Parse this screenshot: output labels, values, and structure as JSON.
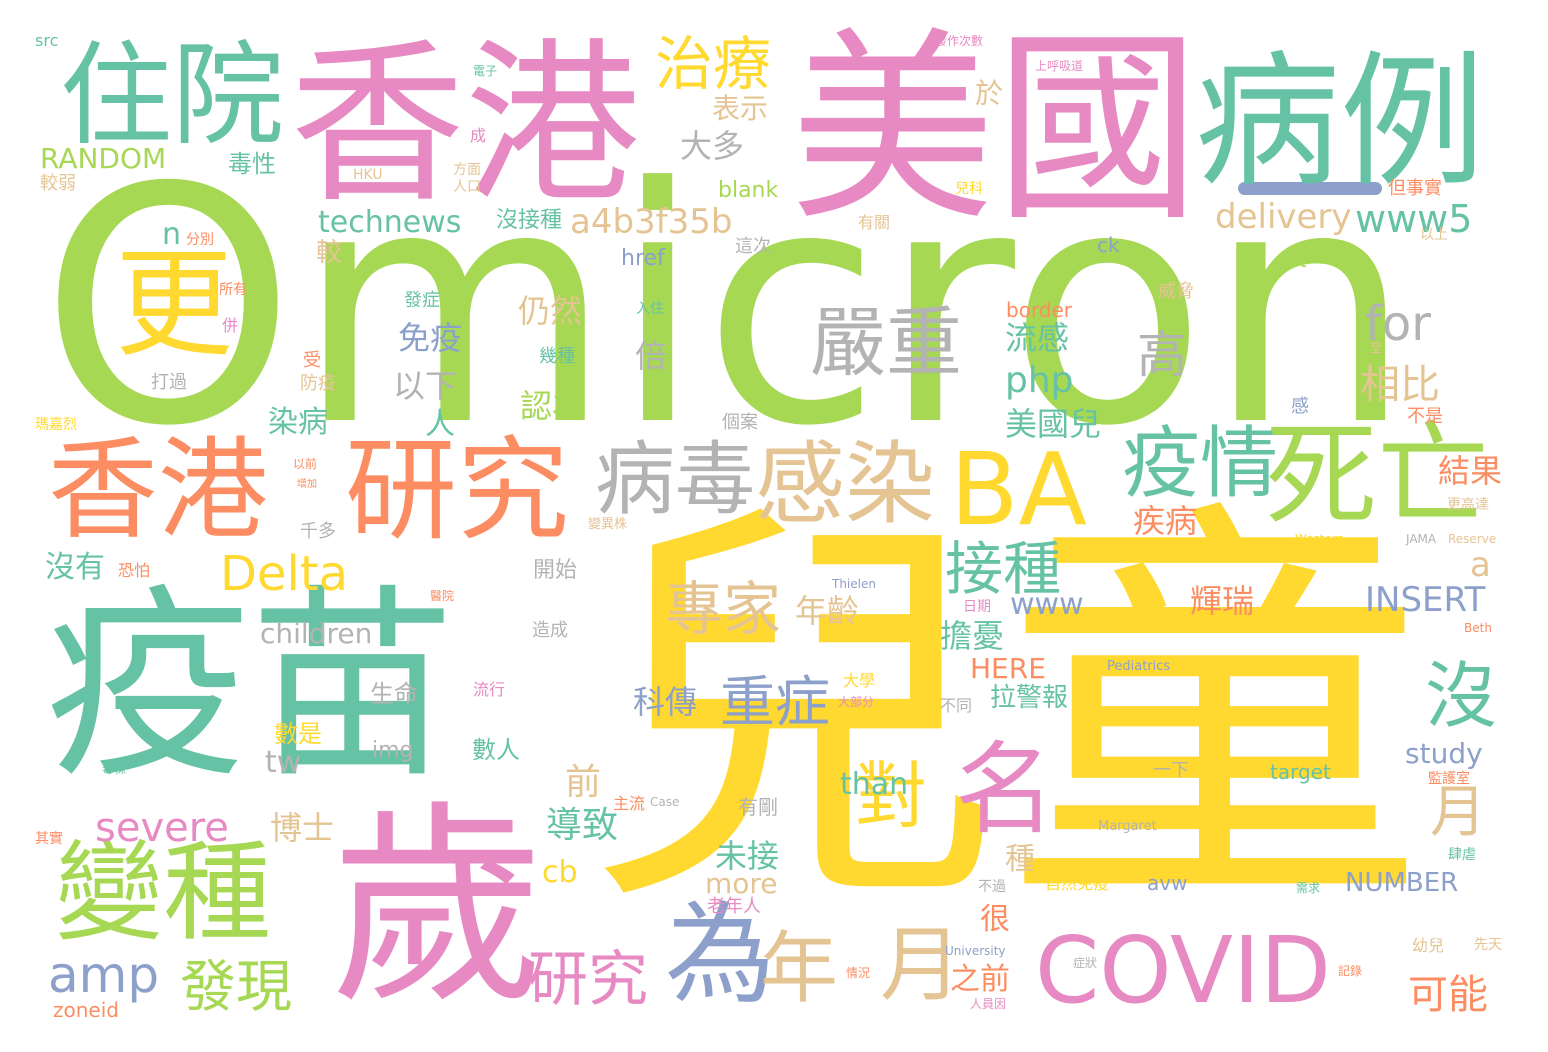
{
  "palette": {
    "green": "#a6d854",
    "teal": "#66c2a5",
    "pink": "#e78ac3",
    "yellow": "#ffd92f",
    "orange": "#fc8d62",
    "tan": "#e5c494",
    "gray": "#b3b3b3",
    "blue": "#8da0cb"
  },
  "words": [
    {
      "text": "Omicron",
      "color": "green"
    },
    {
      "text": "兒童",
      "color": "yellow"
    },
    {
      "text": "香港",
      "color": "pink"
    },
    {
      "text": "美國",
      "color": "pink"
    },
    {
      "text": "疫苗",
      "color": "teal"
    },
    {
      "text": "歲",
      "color": "pink"
    },
    {
      "text": "病例",
      "color": "teal"
    },
    {
      "text": "住院",
      "color": "teal"
    },
    {
      "text": "更",
      "color": "yellow"
    },
    {
      "text": "香港",
      "color": "orange"
    },
    {
      "text": "研究",
      "color": "orange"
    },
    {
      "text": "變種",
      "color": "green"
    },
    {
      "text": "BA",
      "color": "yellow"
    },
    {
      "text": "COVID",
      "color": "pink"
    },
    {
      "text": "為",
      "color": "blue"
    },
    {
      "text": "名",
      "color": "pink"
    },
    {
      "text": "死亡",
      "color": "green"
    },
    {
      "text": "感染",
      "color": "tan"
    },
    {
      "text": "病毒",
      "color": "gray"
    },
    {
      "text": "疫情",
      "color": "teal"
    },
    {
      "text": "嚴重",
      "color": "gray"
    },
    {
      "text": "年",
      "color": "tan"
    },
    {
      "text": "月",
      "color": "tan"
    },
    {
      "text": "治療",
      "color": "yellow"
    },
    {
      "text": "接種",
      "color": "teal"
    },
    {
      "text": "專家",
      "color": "tan"
    },
    {
      "text": "Delta",
      "color": "yellow"
    },
    {
      "text": "對",
      "color": "yellow"
    },
    {
      "text": "發現",
      "color": "green"
    },
    {
      "text": "研究",
      "color": "pink"
    },
    {
      "text": "amp",
      "color": "blue"
    },
    {
      "text": "重症",
      "color": "blue"
    },
    {
      "text": "沒",
      "color": "teal"
    },
    {
      "text": "高",
      "color": "gray"
    },
    {
      "text": "for",
      "color": "gray"
    },
    {
      "text": "severe",
      "color": "pink"
    },
    {
      "text": "a4b3f35b",
      "color": "tan"
    },
    {
      "text": "technews",
      "color": "teal"
    },
    {
      "text": "www5",
      "color": "teal"
    },
    {
      "text": "delivery",
      "color": "tan"
    },
    {
      "text": "月",
      "color": "tan"
    },
    {
      "text": "可能",
      "color": "orange"
    },
    {
      "text": "相比",
      "color": "tan"
    },
    {
      "text": "INSERT",
      "color": "blue"
    },
    {
      "text": "NUMBER",
      "color": "blue"
    },
    {
      "text": "children",
      "color": "gray"
    },
    {
      "text": "php",
      "color": "teal"
    },
    {
      "text": "www",
      "color": "blue"
    },
    {
      "text": "RANDOM",
      "color": "green"
    },
    {
      "text": "study",
      "color": "blue"
    },
    {
      "text": "than",
      "color": "teal"
    },
    {
      "text": "more",
      "color": "tan"
    },
    {
      "text": "HERE",
      "color": "orange"
    },
    {
      "text": "大多",
      "color": "gray"
    },
    {
      "text": "表示",
      "color": "tan"
    },
    {
      "text": "於",
      "color": "tan"
    },
    {
      "text": "毒性",
      "color": "teal"
    },
    {
      "text": "blank",
      "color": "green"
    },
    {
      "text": "沒接種",
      "color": "teal"
    },
    {
      "text": "較",
      "color": "tan"
    },
    {
      "text": "以下",
      "color": "gray"
    },
    {
      "text": "免疫",
      "color": "blue"
    },
    {
      "text": "仍然",
      "color": "tan"
    },
    {
      "text": "倍",
      "color": "gray"
    },
    {
      "text": "認為",
      "color": "green"
    },
    {
      "text": "人",
      "color": "teal"
    },
    {
      "text": "染病",
      "color": "teal"
    },
    {
      "text": "流感",
      "color": "teal"
    },
    {
      "text": "美國兒",
      "color": "teal"
    },
    {
      "text": "疾病",
      "color": "orange"
    },
    {
      "text": "結果",
      "color": "orange"
    },
    {
      "text": "輝瑞",
      "color": "orange"
    },
    {
      "text": "年齡",
      "color": "tan"
    },
    {
      "text": "擔憂",
      "color": "teal"
    },
    {
      "text": "科傳",
      "color": "blue"
    },
    {
      "text": "導致",
      "color": "teal"
    },
    {
      "text": "前",
      "color": "tan"
    },
    {
      "text": "博士",
      "color": "tan"
    },
    {
      "text": "未接",
      "color": "teal"
    },
    {
      "text": "拉警報",
      "color": "teal"
    },
    {
      "text": "之前",
      "color": "orange"
    },
    {
      "text": "很",
      "color": "orange"
    },
    {
      "text": "種",
      "color": "tan"
    },
    {
      "text": "沒有",
      "color": "teal"
    },
    {
      "text": "開始",
      "color": "gray"
    },
    {
      "text": "生命",
      "color": "gray"
    },
    {
      "text": "數人",
      "color": "teal"
    },
    {
      "text": "數是",
      "color": "yellow"
    },
    {
      "text": "tw",
      "color": "gray"
    },
    {
      "text": "img",
      "color": "gray"
    },
    {
      "text": "cb",
      "color": "yellow"
    },
    {
      "text": "zoneid",
      "color": "orange"
    },
    {
      "text": "avw",
      "color": "blue"
    },
    {
      "text": "target",
      "color": "teal"
    },
    {
      "text": "n",
      "color": "teal"
    },
    {
      "text": "href",
      "color": "blue"
    },
    {
      "text": "ck",
      "color": "blue"
    },
    {
      "text": "alt",
      "color": "green"
    },
    {
      "text": "border",
      "color": "orange"
    },
    {
      "text": "a",
      "color": "tan"
    },
    {
      "text": "src",
      "color": "teal"
    },
    {
      "text": "一下",
      "color": "gray"
    },
    {
      "text": "有剛",
      "color": "gray"
    },
    {
      "text": "自然免疫",
      "color": "yellow"
    },
    {
      "text": "幼兒",
      "color": "tan"
    },
    {
      "text": "先天",
      "color": "tan"
    },
    {
      "text": "老年人",
      "color": "pink"
    },
    {
      "text": "千多",
      "color": "gray"
    },
    {
      "text": "防疫",
      "color": "tan"
    },
    {
      "text": "受",
      "color": "orange"
    },
    {
      "text": "打過",
      "color": "gray"
    },
    {
      "text": "所有",
      "color": "orange"
    },
    {
      "text": "併",
      "color": "pink"
    },
    {
      "text": "分別",
      "color": "orange"
    },
    {
      "text": "較弱",
      "color": "tan"
    },
    {
      "text": "HKU",
      "color": "tan"
    },
    {
      "text": "成",
      "color": "pink"
    },
    {
      "text": "方面",
      "color": "tan"
    },
    {
      "text": "人口",
      "color": "tan"
    },
    {
      "text": "電子",
      "color": "teal"
    },
    {
      "text": "發作次數",
      "color": "pink"
    },
    {
      "text": "上呼吸道",
      "color": "pink"
    },
    {
      "text": "但事實",
      "color": "orange"
    },
    {
      "text": "兒科",
      "color": "yellow"
    },
    {
      "text": "以上",
      "color": "tan"
    },
    {
      "text": "有關",
      "color": "tan"
    },
    {
      "text": "這次",
      "color": "gray"
    },
    {
      "text": "恐怕",
      "color": "orange"
    },
    {
      "text": "威脅",
      "color": "tan"
    },
    {
      "text": "發症",
      "color": "teal"
    },
    {
      "text": "幾種",
      "color": "teal"
    },
    {
      "text": "入住",
      "color": "teal"
    },
    {
      "text": "個案",
      "color": "gray"
    },
    {
      "text": "不是",
      "color": "orange"
    },
    {
      "text": "感",
      "color": "blue"
    },
    {
      "text": "造成",
      "color": "gray"
    },
    {
      "text": "主流",
      "color": "orange"
    },
    {
      "text": "流行",
      "color": "pink"
    },
    {
      "text": "醫院",
      "color": "orange"
    },
    {
      "text": "大學",
      "color": "yellow"
    },
    {
      "text": "大部分",
      "color": "pink"
    },
    {
      "text": "不同",
      "color": "gray"
    },
    {
      "text": "日期",
      "color": "pink"
    },
    {
      "text": "Pediatrics",
      "color": "blue"
    },
    {
      "text": "Princess",
      "color": "yellow"
    },
    {
      "text": "Hospital",
      "color": "yellow"
    },
    {
      "text": "Margaret",
      "color": "gray"
    },
    {
      "text": "University",
      "color": "blue"
    },
    {
      "text": "Thielen",
      "color": "blue"
    },
    {
      "text": "Western",
      "color": "yellow"
    },
    {
      "text": "JAMA",
      "color": "gray"
    },
    {
      "text": "Reserve",
      "color": "tan"
    },
    {
      "text": "Case",
      "color": "gray"
    },
    {
      "text": "Beth",
      "color": "orange"
    },
    {
      "text": "監護室",
      "color": "orange"
    },
    {
      "text": "更高達",
      "color": "tan"
    },
    {
      "text": "變異株",
      "color": "tan"
    },
    {
      "text": "其實",
      "color": "orange"
    },
    {
      "text": "毒株",
      "color": "teal"
    },
    {
      "text": "以前",
      "color": "orange"
    },
    {
      "text": "瑪嘉烈",
      "color": "yellow"
    },
    {
      "text": "增加",
      "color": "orange"
    },
    {
      "text": "情況",
      "color": "orange"
    },
    {
      "text": "不過",
      "color": "gray"
    },
    {
      "text": "記錄",
      "color": "orange"
    },
    {
      "text": "症狀",
      "color": "gray"
    },
    {
      "text": "需求",
      "color": "teal"
    },
    {
      "text": "肆虐",
      "color": "teal"
    },
    {
      "text": "人員因",
      "color": "pink"
    },
    {
      "text": "至",
      "color": "tan"
    }
  ]
}
